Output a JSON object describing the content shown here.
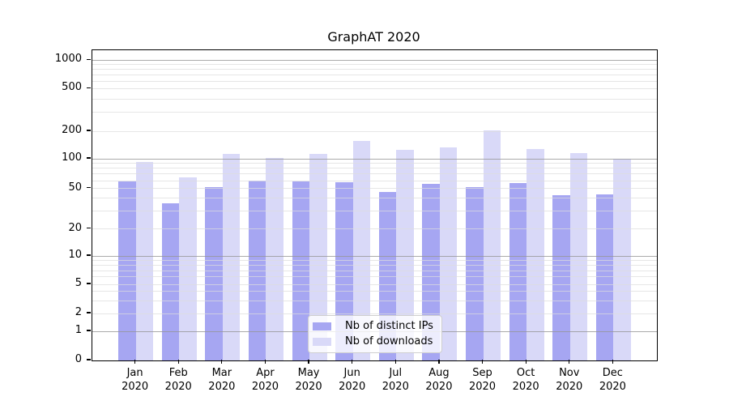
{
  "chart_data": {
    "type": "bar",
    "title": "GraphAT 2020",
    "categories": [
      "Jan",
      "Feb",
      "Mar",
      "Apr",
      "May",
      "Jun",
      "Jul",
      "Aug",
      "Sep",
      "Oct",
      "Nov",
      "Dec"
    ],
    "category_year": "2020",
    "series": [
      {
        "name": "Nb of distinct IPs",
        "color": "#a6a6f2",
        "values": [
          59,
          36,
          52,
          60,
          59,
          58,
          46,
          56,
          52,
          57,
          43,
          44
        ]
      },
      {
        "name": "Nb of downloads",
        "color": "#d9d9f8",
        "values": [
          92,
          65,
          112,
          102,
          112,
          158,
          124,
          133,
          205,
          127,
          116,
          100
        ]
      }
    ],
    "yaxis": {
      "scale": "log-with-zero",
      "ticks": [
        0,
        1,
        2,
        5,
        10,
        20,
        50,
        100,
        200,
        500,
        1000
      ],
      "major_gridlines": [
        1,
        10,
        100,
        1000
      ],
      "minor_decades": [
        1,
        10,
        100
      ],
      "minor_multiples": [
        2,
        3,
        4,
        5,
        6,
        7,
        8,
        9
      ],
      "ylim": [
        0,
        1150
      ],
      "anchors": [
        [
          0,
          0.0
        ],
        [
          1,
          0.094
        ],
        [
          2,
          0.1514
        ],
        [
          5,
          0.2454
        ],
        [
          10,
          0.3368
        ],
        [
          20,
          0.4238
        ],
        [
          50,
          0.5544
        ],
        [
          100,
          0.6501
        ],
        [
          200,
          0.7389
        ],
        [
          500,
          0.8765
        ],
        [
          1000,
          0.9678
        ]
      ]
    },
    "grid": true,
    "legend_position": "lower-center"
  },
  "colors": {
    "background": "#ffffff",
    "spine": "#000000",
    "major_grid": "#b0b0b0",
    "minor_grid": "#e9e9e9",
    "text": "#000000"
  }
}
